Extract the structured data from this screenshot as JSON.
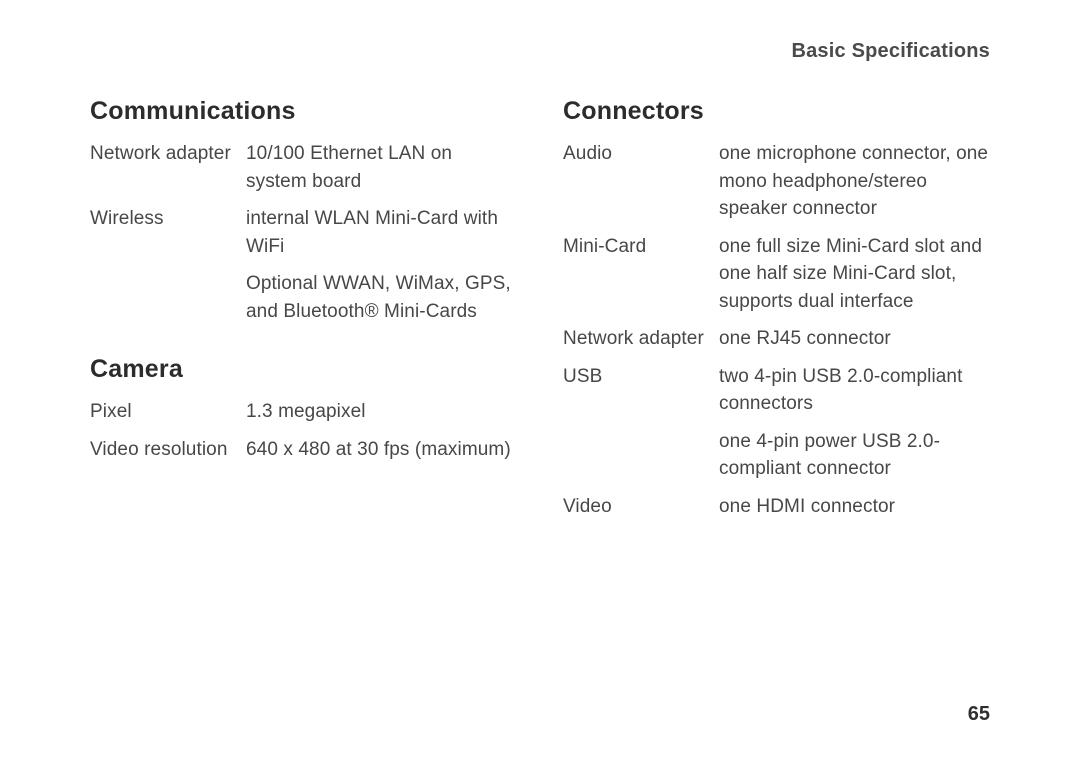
{
  "header": {
    "title": "Basic Specifications"
  },
  "page_number": "65",
  "left": {
    "sections": [
      {
        "heading": "Communications",
        "rows": [
          {
            "label": "Network adapter",
            "values": [
              "10/100 Ethernet LAN on system board"
            ]
          },
          {
            "label": "Wireless",
            "values": [
              "internal WLAN Mini-Card with WiFi",
              "Optional WWAN, WiMax, GPS, and Bluetooth® Mini-Cards"
            ]
          }
        ]
      },
      {
        "heading": "Camera",
        "rows": [
          {
            "label": "Pixel",
            "values": [
              "1.3 megapixel"
            ]
          },
          {
            "label": "Video resolution",
            "values": [
              "640 x 480 at 30 fps (maximum)"
            ]
          }
        ]
      }
    ]
  },
  "right": {
    "sections": [
      {
        "heading": "Connectors",
        "rows": [
          {
            "label": "Audio",
            "values": [
              "one microphone connector, one mono headphone/stereo speaker connector"
            ]
          },
          {
            "label": "Mini-Card",
            "values": [
              "one full size Mini-Card slot and one half size Mini-Card slot, supports dual interface"
            ]
          },
          {
            "label": "Network adapter",
            "values": [
              "one RJ45 connector"
            ]
          },
          {
            "label": "USB",
            "values": [
              "two 4-pin USB 2.0-compliant connectors",
              "one 4-pin power USB 2.0-compliant connector"
            ]
          },
          {
            "label": "Video",
            "values": [
              "one HDMI connector"
            ]
          }
        ]
      }
    ]
  }
}
